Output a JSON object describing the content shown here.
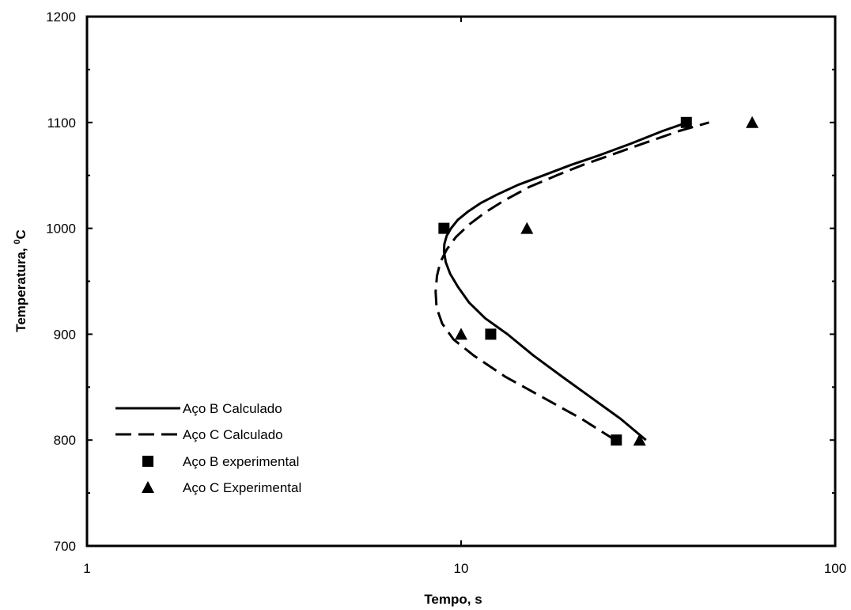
{
  "chart_data": {
    "type": "scatter",
    "title": "",
    "xlabel": "Tempo, s",
    "ylabel_main": "Temperatura, ",
    "ylabel_sup": "0",
    "ylabel_unit": "C",
    "x_scale": "log",
    "xlim": [
      1,
      100
    ],
    "ylim": [
      700,
      1200
    ],
    "x_ticks": [
      1,
      10,
      100
    ],
    "x_tick_labels": [
      "1",
      "10",
      "100"
    ],
    "y_ticks": [
      700,
      800,
      900,
      1000,
      1100,
      1200
    ],
    "y_tick_labels": [
      "700",
      "800",
      "900",
      "1000",
      "1100",
      "1200"
    ],
    "grid": false,
    "legend_position": "bottom-left",
    "series": [
      {
        "name": "Aço B Calculado",
        "kind": "line",
        "style": "solid",
        "color": "#000000",
        "x": [
          31.2,
          26.7,
          22.3,
          18.6,
          15.6,
          13.3,
          11.6,
          10.5,
          9.8,
          9.35,
          9.1,
          9.0,
          9.02,
          9.15,
          9.4,
          9.8,
          10.45,
          11.3,
          12.5,
          14.2,
          16.6,
          19.7,
          23.4,
          28.4,
          34.6,
          40.2
        ],
        "y": [
          800,
          820,
          840,
          860,
          880,
          900,
          915,
          930,
          945,
          957,
          968,
          978,
          985,
          993,
          1000,
          1008,
          1016,
          1024,
          1032,
          1041,
          1050,
          1060,
          1069,
          1080,
          1092,
          1100
        ]
      },
      {
        "name": "Aço C Calculado",
        "kind": "line",
        "style": "dashed",
        "color": "#000000",
        "x": [
          25.8,
          21.0,
          16.6,
          13.1,
          10.8,
          9.55,
          8.9,
          8.6,
          8.55,
          8.62,
          8.8,
          9.15,
          9.7,
          10.55,
          11.6,
          13.0,
          15.2,
          18.0,
          21.2,
          25.5,
          31.2,
          38.3,
          46.0
        ],
        "y": [
          800,
          820,
          840,
          860,
          880,
          895,
          910,
          925,
          940,
          955,
          968,
          980,
          992,
          1004,
          1015,
          1026,
          1039,
          1050,
          1060,
          1070,
          1081,
          1092,
          1100
        ]
      },
      {
        "name": "Aço B experimental",
        "kind": "scatter",
        "marker": "square",
        "color": "#000000",
        "x": [
          9,
          12,
          26,
          40
        ],
        "y": [
          1000,
          900,
          800,
          1100
        ]
      },
      {
        "name": "Aço C Experimental",
        "kind": "scatter",
        "marker": "triangle",
        "color": "#000000",
        "x": [
          10,
          15,
          30,
          60
        ],
        "y": [
          900,
          1000,
          800,
          1100
        ]
      }
    ]
  }
}
